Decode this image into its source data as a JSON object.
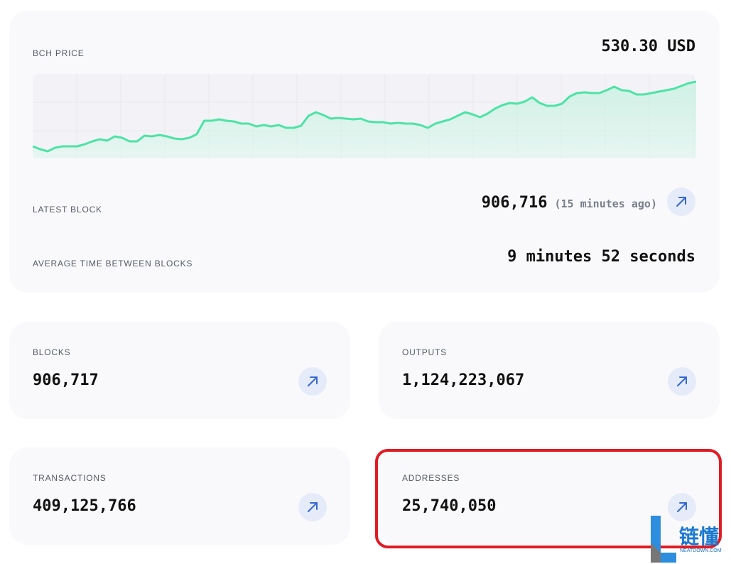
{
  "price": {
    "label": "BCH PRICE",
    "value": "530.30 USD",
    "chart_values": [
      16,
      12,
      9,
      14,
      16,
      16,
      16,
      19,
      23,
      26,
      24,
      30,
      28,
      23,
      23,
      31,
      30,
      32,
      30,
      27,
      26,
      28,
      33,
      52,
      52,
      54,
      52,
      51,
      48,
      48,
      44,
      46,
      44,
      46,
      42,
      42,
      45,
      59,
      64,
      60,
      55,
      56,
      55,
      54,
      55,
      51,
      50,
      50,
      48,
      49,
      48,
      48,
      46,
      42,
      48,
      51,
      54,
      59,
      64,
      61,
      57,
      62,
      69,
      74,
      77,
      76,
      79,
      85,
      77,
      73,
      73,
      76,
      86,
      91,
      92,
      91,
      91,
      95,
      100,
      95,
      94,
      89,
      89,
      91,
      93,
      95,
      97,
      101,
      105,
      107
    ]
  },
  "latest_block": {
    "label": "LATEST BLOCK",
    "value": "906,716",
    "age": "(15 minutes ago)"
  },
  "average_time": {
    "label": "AVERAGE TIME BETWEEN BLOCKS",
    "value": "9 minutes 52 seconds"
  },
  "stats": [
    {
      "label": "BLOCKS",
      "value": "906,717"
    },
    {
      "label": "OUTPUTS",
      "value": "1,124,223,067"
    },
    {
      "label": "TRANSACTIONS",
      "value": "409,125,766"
    },
    {
      "label": "ADDRESSES",
      "value": "25,740,050"
    }
  ],
  "watermark": {
    "title": "链懂",
    "subtitle": "NEATDOWN.COM"
  }
}
